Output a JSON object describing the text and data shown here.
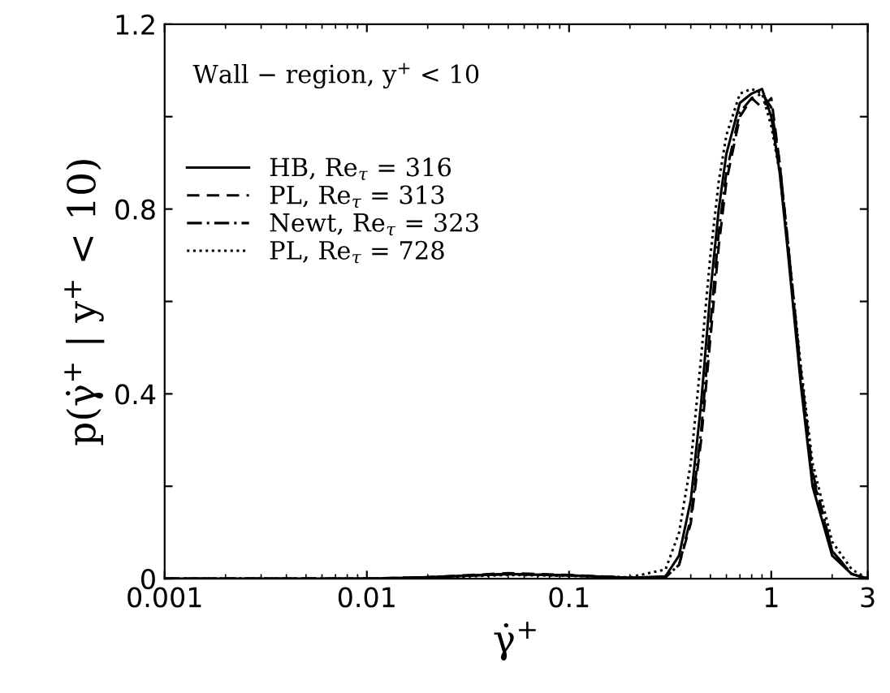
{
  "chart_data": {
    "type": "line",
    "xlabel": "γ̇$^{+}$",
    "ylabel": "p(γ̇$^{+}$ | y$^{+}$ < 10)",
    "annotations": [
      "Wall − region, y$^{+}$ < 10"
    ],
    "log": "x",
    "x": [
      0.001,
      0.01,
      0.02,
      0.05,
      0.1,
      0.2,
      0.3,
      0.35,
      0.4,
      0.45,
      0.5,
      0.55,
      0.6,
      0.7,
      0.8,
      0.9,
      1.0,
      1.1,
      1.2,
      1.4,
      1.6,
      2.0,
      2.5,
      3
    ],
    "xlim": [
      0.001,
      3
    ],
    "xticks": [
      0.001,
      0.01,
      0.1,
      1,
      3
    ],
    "ylim": [
      0,
      1.2
    ],
    "yticks": [
      0,
      {
        "value": 0.2,
        "label": null
      },
      0.4,
      {
        "value": 0.6,
        "label": null
      },
      0.8,
      {
        "value": 1.0,
        "label": null
      },
      1.2
    ],
    "legend": "top left",
    "grid": false,
    "series": [
      {
        "name": "HB, Re$_{τ}$ = 316",
        "color": "#000000",
        "line_style": "solid",
        "values": [
          0,
          0,
          0.003,
          0.01,
          0.007,
          0.002,
          0.005,
          0.05,
          0.17,
          0.38,
          0.62,
          0.8,
          0.92,
          1.03,
          1.05,
          1.06,
          1.0,
          0.88,
          0.72,
          0.42,
          0.2,
          0.05,
          0.01,
          0
        ]
      },
      {
        "name": "PL, Re$_{τ}$ = 313",
        "color": "#000000",
        "line_style": "dashed",
        "values": [
          0,
          0,
          0.003,
          0.012,
          0.008,
          0.002,
          0.003,
          0.03,
          0.12,
          0.3,
          0.52,
          0.72,
          0.86,
          1.0,
          1.04,
          1.02,
          1.04,
          0.9,
          0.74,
          0.44,
          0.22,
          0.06,
          0.01,
          0
        ]
      },
      {
        "name": "Newt, Re$_{τ}$ = 323",
        "color": "#000000",
        "line_style": "dashdot",
        "values": [
          0,
          0,
          0.003,
          0.01,
          0.007,
          0.002,
          0.003,
          0.03,
          0.13,
          0.32,
          0.55,
          0.75,
          0.88,
          1.01,
          1.04,
          1.05,
          1.02,
          0.9,
          0.74,
          0.45,
          0.23,
          0.06,
          0.01,
          0
        ]
      },
      {
        "name": "PL, Re$_{τ}$ = 728",
        "color": "#000000",
        "line_style": "dotted",
        "values": [
          0,
          0,
          0.002,
          0.008,
          0.006,
          0.003,
          0.02,
          0.1,
          0.25,
          0.48,
          0.7,
          0.86,
          0.96,
          1.05,
          1.06,
          1.05,
          0.98,
          0.88,
          0.74,
          0.46,
          0.25,
          0.08,
          0.02,
          0
        ]
      }
    ]
  }
}
